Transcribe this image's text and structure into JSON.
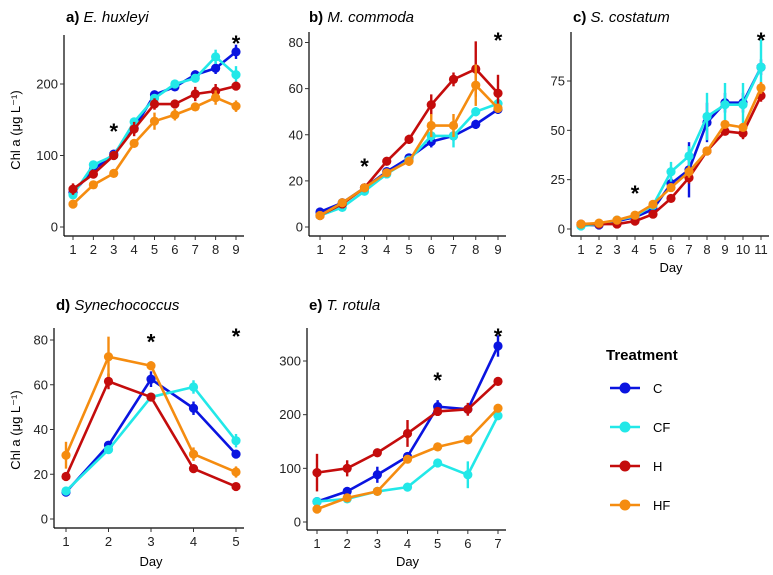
{
  "legend": {
    "title": "Treatment",
    "items": [
      {
        "key": "C",
        "color": "#0a14e0"
      },
      {
        "key": "CF",
        "color": "#22e8e8"
      },
      {
        "key": "H",
        "color": "#c40c0c"
      },
      {
        "key": "HF",
        "color": "#f58c10"
      }
    ]
  },
  "chart_data": [
    {
      "type": "line",
      "panel": "a",
      "title_prefix": "a)",
      "title": "E. huxleyi",
      "xlabel": "",
      "ylabel": "Chl a (μg L⁻¹)",
      "x": [
        1,
        2,
        3,
        4,
        5,
        6,
        7,
        8,
        9
      ],
      "xticks": [
        "1",
        "2",
        "3",
        "4",
        "5",
        "6",
        "7",
        "8",
        "9"
      ],
      "yticks": [
        0,
        100,
        200
      ],
      "ylim": [
        -12,
        268
      ],
      "significance_days": [
        3,
        9
      ],
      "series": [
        {
          "name": "C",
          "values": [
            48,
            80,
            102,
            138,
            185,
            196,
            213,
            222,
            245
          ],
          "err": [
            5,
            5,
            4,
            5,
            5,
            5,
            6,
            8,
            10
          ]
        },
        {
          "name": "CF",
          "values": [
            45,
            87,
            100,
            147,
            180,
            200,
            208,
            238,
            213
          ],
          "err": [
            4,
            4,
            4,
            4,
            5,
            5,
            5,
            10,
            12
          ]
        },
        {
          "name": "H",
          "values": [
            53,
            74,
            100,
            137,
            172,
            172,
            186,
            190,
            197
          ],
          "err": [
            8,
            5,
            4,
            10,
            8,
            6,
            10,
            10,
            6
          ]
        },
        {
          "name": "HF",
          "values": [
            32,
            59,
            75,
            117,
            148,
            157,
            168,
            181,
            169
          ],
          "err": [
            4,
            4,
            4,
            6,
            12,
            8,
            5,
            10,
            8
          ]
        }
      ]
    },
    {
      "type": "line",
      "panel": "b",
      "title_prefix": "b)",
      "title": "M. commoda",
      "xlabel": "",
      "ylabel": "",
      "x": [
        1,
        2,
        3,
        4,
        5,
        6,
        7,
        8,
        9
      ],
      "xticks": [
        "1",
        "2",
        "3",
        "4",
        "5",
        "6",
        "7",
        "8",
        "9"
      ],
      "yticks": [
        0,
        20,
        40,
        60,
        80
      ],
      "ylim": [
        -4,
        84
      ],
      "significance_days": [
        3,
        9
      ],
      "series": [
        {
          "name": "C",
          "values": [
            6.5,
            10.5,
            17,
            24,
            30,
            37,
            39.5,
            44.5,
            51
          ],
          "err": [
            0.8,
            0.8,
            0.8,
            1,
            1.2,
            2.5,
            2,
            2,
            2
          ]
        },
        {
          "name": "CF",
          "values": [
            5,
            8.5,
            15.5,
            23,
            29,
            39.5,
            39.5,
            50,
            53.5
          ],
          "err": [
            0.8,
            0.8,
            0.8,
            1.2,
            1.2,
            2.5,
            5,
            2,
            2
          ]
        },
        {
          "name": "H",
          "values": [
            5,
            10,
            17,
            28.5,
            38,
            53,
            64,
            68.5,
            58
          ],
          "err": [
            0.8,
            0.8,
            0.8,
            1.5,
            2,
            4.5,
            3,
            12,
            8
          ]
        },
        {
          "name": "HF",
          "values": [
            5,
            10.5,
            17,
            23.5,
            28.5,
            44,
            44,
            61.5,
            51.5
          ],
          "err": [
            0.8,
            0.8,
            0.8,
            1.5,
            2,
            5,
            5,
            9,
            2
          ]
        }
      ]
    },
    {
      "type": "line",
      "panel": "c",
      "title_prefix": "c)",
      "title": "S. costatum",
      "xlabel": "Day",
      "ylabel": "",
      "x": [
        1,
        2,
        3,
        4,
        5,
        6,
        7,
        8,
        9,
        10,
        11
      ],
      "xticks": [
        "1",
        "2",
        "3",
        "4",
        "5",
        "6",
        "7",
        "8",
        "9",
        "10",
        "11"
      ],
      "yticks": [
        0,
        25,
        50,
        75
      ],
      "ylim": [
        -4,
        99
      ],
      "significance_days": [
        4,
        11
      ],
      "series": [
        {
          "name": "C",
          "values": [
            2,
            2,
            4,
            6,
            10,
            23,
            30,
            54,
            64,
            64,
            82
          ],
          "err": [
            0.5,
            0.5,
            0.5,
            1,
            2,
            3,
            14,
            10,
            5,
            5,
            4
          ]
        },
        {
          "name": "CF",
          "values": [
            1.5,
            2.5,
            4.5,
            6.5,
            12,
            29,
            37,
            57,
            63,
            63,
            82
          ],
          "err": [
            0.5,
            0.5,
            0.5,
            1,
            2,
            5,
            5,
            12,
            11,
            11,
            14
          ]
        },
        {
          "name": "H",
          "values": [
            2.5,
            2.5,
            2.5,
            4,
            7.5,
            15.5,
            26,
            39.5,
            49.5,
            48.5,
            67.5
          ],
          "err": [
            0.5,
            0.5,
            0.5,
            1,
            1,
            1.5,
            3,
            2,
            2,
            3,
            3
          ]
        },
        {
          "name": "HF",
          "values": [
            2.5,
            3,
            4.5,
            7,
            12.5,
            21,
            29,
            39.5,
            53,
            51.5,
            71.5
          ],
          "err": [
            0.5,
            0.5,
            0.5,
            1,
            1.5,
            2,
            3,
            2,
            2,
            2,
            3
          ]
        }
      ]
    },
    {
      "type": "line",
      "panel": "d",
      "title_prefix": "d)",
      "title": "Synechococcus",
      "xlabel": "Day",
      "ylabel": "Chl a (μg L⁻¹)",
      "x": [
        1,
        2,
        3,
        4,
        5
      ],
      "xticks": [
        "1",
        "2",
        "3",
        "4",
        "5"
      ],
      "yticks": [
        0,
        20,
        40,
        60,
        80
      ],
      "ylim": [
        -3.5,
        85
      ],
      "significance_days": [
        3,
        5
      ],
      "series": [
        {
          "name": "C",
          "values": [
            12,
            33,
            62.5,
            49.5,
            29
          ],
          "err": [
            1,
            1.5,
            3.5,
            3,
            1.5
          ]
        },
        {
          "name": "CF",
          "values": [
            12.5,
            31,
            54.5,
            59,
            35
          ],
          "err": [
            1,
            1,
            1.5,
            3,
            3
          ]
        },
        {
          "name": "H",
          "values": [
            19,
            61.5,
            54.5,
            22.5,
            14.5
          ],
          "err": [
            1,
            3.5,
            1,
            1,
            1
          ]
        },
        {
          "name": "HF",
          "values": [
            28.5,
            72.5,
            68.5,
            29,
            21
          ],
          "err": [
            6,
            9,
            2,
            3,
            2.5
          ]
        }
      ]
    },
    {
      "type": "line",
      "panel": "e",
      "title_prefix": "e)",
      "title": "T. rotula",
      "xlabel": "Day",
      "ylabel": "",
      "x": [
        1,
        2,
        3,
        4,
        5,
        6,
        7
      ],
      "xticks": [
        "1",
        "2",
        "3",
        "4",
        "5",
        "6",
        "7"
      ],
      "yticks": [
        0,
        100,
        200,
        300
      ],
      "ylim": [
        -17,
        362
      ],
      "significance_days": [
        5,
        7
      ],
      "series": [
        {
          "name": "C",
          "values": [
            38,
            57,
            88,
            122,
            215,
            210,
            328
          ],
          "err": [
            5,
            8,
            15,
            8,
            12,
            10,
            20
          ]
        },
        {
          "name": "CF",
          "values": [
            38,
            43,
            57,
            65,
            110,
            88,
            198
          ],
          "err": [
            4,
            4,
            4,
            4,
            6,
            25,
            6
          ]
        },
        {
          "name": "H",
          "values": [
            92,
            100,
            129,
            165,
            206,
            210,
            262
          ],
          "err": [
            35,
            15,
            6,
            25,
            6,
            12,
            8
          ]
        },
        {
          "name": "HF",
          "values": [
            24,
            45,
            57,
            117,
            140,
            153,
            212
          ],
          "err": [
            4,
            4,
            4,
            4,
            8,
            5,
            5
          ]
        }
      ]
    }
  ]
}
